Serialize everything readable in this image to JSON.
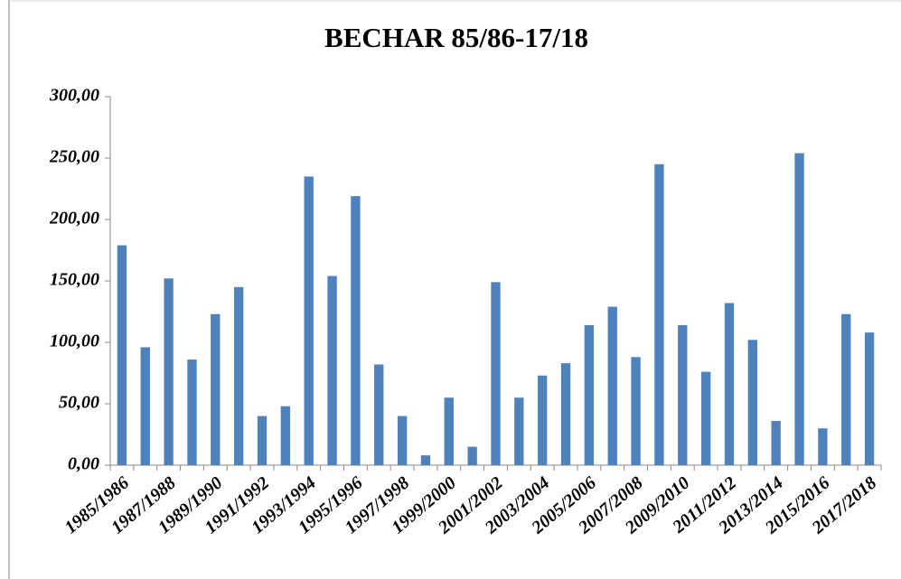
{
  "chart_data": {
    "type": "bar",
    "title": "BECHAR 85/86-17/18",
    "categories": [
      "1985/1986",
      null,
      "1987/1988",
      null,
      "1989/1990",
      null,
      "1991/1992",
      null,
      "1993/1994",
      null,
      "1995/1996",
      null,
      "1997/1998",
      null,
      "1999/2000",
      null,
      "2001/2002",
      null,
      "2003/2004",
      null,
      "2005/2006",
      null,
      "2007/2008",
      null,
      "2009/2010",
      null,
      "2011/2012",
      null,
      "2013/2014",
      null,
      "2015/2016",
      null,
      "2017/2018"
    ],
    "values": [
      179,
      96,
      152,
      86,
      123,
      145,
      40,
      48,
      235,
      154,
      219,
      82,
      40,
      8,
      55,
      15,
      149,
      55,
      73,
      83,
      114,
      129,
      88,
      245,
      114,
      76,
      132,
      102,
      36,
      254,
      30,
      123,
      108
    ],
    "color": "#4f81bd",
    "ylim": [
      0,
      300
    ],
    "yticks": [
      {
        "value": 0,
        "label": "0,00"
      },
      {
        "value": 50,
        "label": "50,00"
      },
      {
        "value": 100,
        "label": "100,00"
      },
      {
        "value": 150,
        "label": "150,00"
      },
      {
        "value": 200,
        "label": "200,00"
      },
      {
        "value": 250,
        "label": "250,00"
      },
      {
        "value": 300,
        "label": "300,00"
      }
    ],
    "grid": false
  }
}
